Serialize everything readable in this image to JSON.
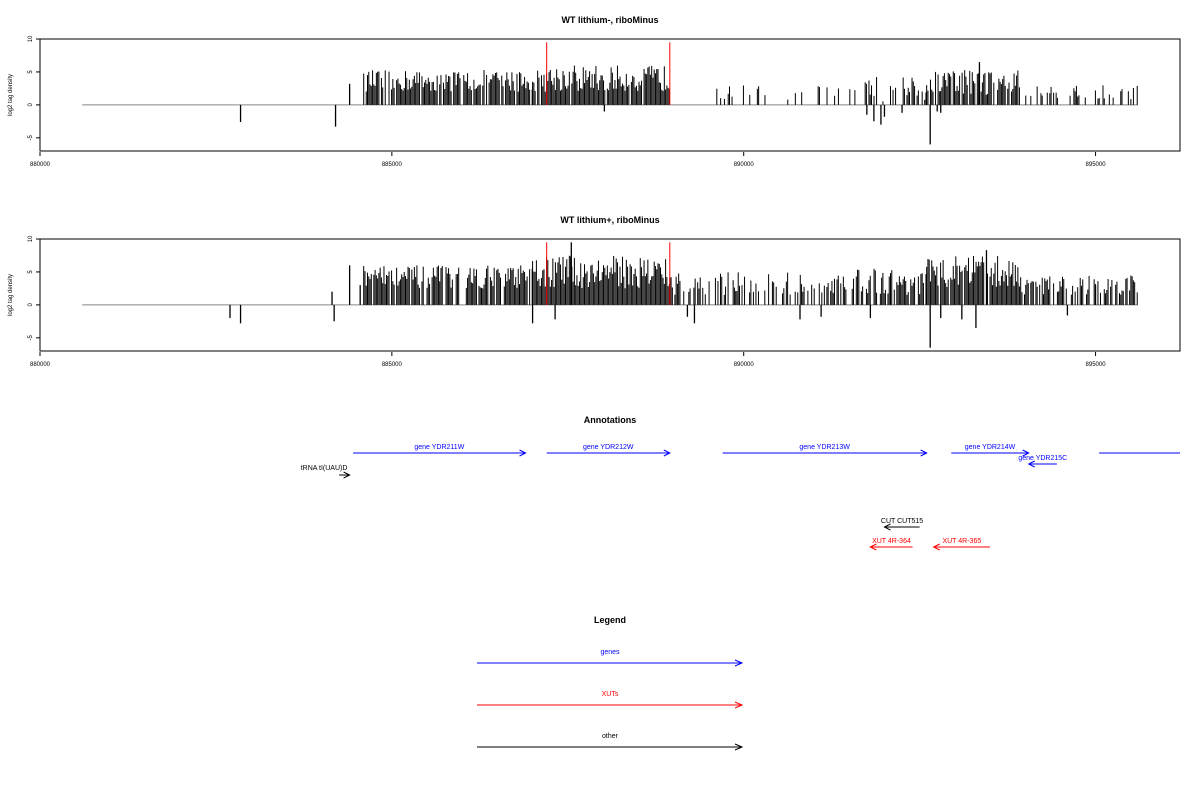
{
  "chart_data": [
    {
      "type": "bar",
      "title": "WT lithium-, riboMinus",
      "ylabel": "log2 tag density",
      "xlim": [
        880000,
        896200
      ],
      "ylim": [
        -7,
        10
      ],
      "xticks": [
        880000,
        885000,
        890000,
        895000
      ],
      "xtick_labels": [
        "880000",
        "885000",
        "890000",
        "895000"
      ],
      "yticks": [
        -5,
        0,
        5,
        10
      ],
      "ytick_labels": [
        "-5",
        "0",
        "5",
        "10"
      ],
      "baseline_range": [
        880600,
        895600
      ],
      "marker_lines": [
        887200,
        888950
      ],
      "marker_color": "#ff0000",
      "bar_color": "#000000",
      "segments": [
        {
          "start": 884600,
          "end": 887000,
          "min": 2.0,
          "max": 5.3,
          "density": 0.8
        },
        {
          "start": 887000,
          "end": 888950,
          "min": 2.0,
          "max": 6.0,
          "density": 0.95
        },
        {
          "start": 889600,
          "end": 891600,
          "min": 0.8,
          "max": 3.0,
          "density": 0.2
        },
        {
          "start": 891600,
          "end": 892600,
          "min": 0.5,
          "max": 4.5,
          "density": 0.4
        },
        {
          "start": 892600,
          "end": 893900,
          "min": 1.5,
          "max": 5.6,
          "density": 0.8
        },
        {
          "start": 893900,
          "end": 895600,
          "min": 0.8,
          "max": 3.0,
          "density": 0.35
        }
      ],
      "points": [
        {
          "x": 882850,
          "y": -2.6
        },
        {
          "x": 884200,
          "y": -3.3
        },
        {
          "x": 884400,
          "y": 3.2
        },
        {
          "x": 888020,
          "y": -1.0
        },
        {
          "x": 891750,
          "y": -1.5
        },
        {
          "x": 891850,
          "y": -2.5
        },
        {
          "x": 891950,
          "y": -3.0
        },
        {
          "x": 892000,
          "y": -1.8
        },
        {
          "x": 892250,
          "y": -1.2
        },
        {
          "x": 892650,
          "y": -6.0
        },
        {
          "x": 892750,
          "y": -1.0
        },
        {
          "x": 892800,
          "y": -1.2
        },
        {
          "x": 893350,
          "y": 6.5
        }
      ]
    },
    {
      "type": "bar",
      "title": "WT lithium+, riboMinus",
      "ylabel": "log2 tag density",
      "xlim": [
        880000,
        896200
      ],
      "ylim": [
        -7,
        10
      ],
      "xticks": [
        880000,
        885000,
        890000,
        895000
      ],
      "xtick_labels": [
        "880000",
        "885000",
        "890000",
        "895000"
      ],
      "yticks": [
        -5,
        0,
        5,
        10
      ],
      "ytick_labels": [
        "-5",
        "0",
        "5",
        "10"
      ],
      "baseline_range": [
        880600,
        895600
      ],
      "marker_lines": [
        887200,
        888950
      ],
      "marker_color": "#ff0000",
      "bar_color": "#000000",
      "segments": [
        {
          "start": 884600,
          "end": 887000,
          "min": 2.5,
          "max": 6.0,
          "density": 0.85
        },
        {
          "start": 887000,
          "end": 888950,
          "min": 2.5,
          "max": 7.5,
          "density": 1.0
        },
        {
          "start": 888950,
          "end": 891600,
          "min": 1.5,
          "max": 5.0,
          "density": 0.55
        },
        {
          "start": 891600,
          "end": 892600,
          "min": 1.5,
          "max": 5.5,
          "density": 0.6
        },
        {
          "start": 892600,
          "end": 893900,
          "min": 2.5,
          "max": 7.5,
          "density": 0.95
        },
        {
          "start": 893900,
          "end": 895600,
          "min": 1.5,
          "max": 4.5,
          "density": 0.6
        }
      ],
      "points": [
        {
          "x": 882700,
          "y": -2.0
        },
        {
          "x": 882850,
          "y": -2.8
        },
        {
          "x": 884150,
          "y": 2.0
        },
        {
          "x": 884180,
          "y": -2.5
        },
        {
          "x": 884400,
          "y": 6.0
        },
        {
          "x": 884550,
          "y": 3.0
        },
        {
          "x": 887000,
          "y": -2.8
        },
        {
          "x": 887320,
          "y": -2.2
        },
        {
          "x": 887550,
          "y": 9.5
        },
        {
          "x": 889200,
          "y": -1.8
        },
        {
          "x": 889300,
          "y": -2.8
        },
        {
          "x": 890800,
          "y": -2.2
        },
        {
          "x": 891100,
          "y": -1.8
        },
        {
          "x": 891800,
          "y": -2.0
        },
        {
          "x": 892650,
          "y": -6.5
        },
        {
          "x": 892800,
          "y": -2.0
        },
        {
          "x": 893100,
          "y": -2.2
        },
        {
          "x": 893300,
          "y": -3.5
        },
        {
          "x": 893450,
          "y": 8.3
        },
        {
          "x": 894600,
          "y": -1.6
        },
        {
          "x": 895000,
          "y": 3.0
        }
      ]
    },
    {
      "type": "annotation-track",
      "title": "Annotations",
      "xlim": [
        880000,
        896200
      ],
      "features": [
        {
          "label": "gene YDR211W",
          "start": 884450,
          "end": 886900,
          "row": 0,
          "direction": "forward",
          "color": "#0000ff"
        },
        {
          "label": "gene YDR212W",
          "start": 887200,
          "end": 888950,
          "row": 0,
          "direction": "forward",
          "color": "#0000ff"
        },
        {
          "label": "gene YDR213W",
          "start": 889700,
          "end": 892600,
          "row": 0,
          "direction": "forward",
          "color": "#0000ff"
        },
        {
          "label": "gene YDR214W",
          "start": 892950,
          "end": 894050,
          "row": 0,
          "direction": "forward",
          "color": "#0000ff"
        },
        {
          "label": "gene YDR215C",
          "start": 894050,
          "end": 894450,
          "row": 1,
          "direction": "reverse",
          "color": "#0000ff"
        },
        {
          "label": "",
          "start": 895050,
          "end": 896200,
          "row": 0,
          "direction": "none",
          "color": "#0000ff"
        },
        {
          "label": "tRNA tI(UAU)D",
          "start": 884250,
          "end": 884400,
          "row": 2,
          "direction": "forward",
          "color": "#000000"
        },
        {
          "label": "CUT CUT515",
          "start": 892000,
          "end": 892500,
          "row": 4,
          "direction": "reverse",
          "color": "#000000"
        },
        {
          "label": "XUT 4R-364",
          "start": 891800,
          "end": 892400,
          "row": 5,
          "direction": "reverse",
          "color": "#ff0000"
        },
        {
          "label": "XUT 4R-365",
          "start": 892700,
          "end": 893500,
          "row": 5,
          "direction": "reverse",
          "color": "#ff0000"
        }
      ]
    },
    {
      "type": "legend",
      "title": "Legend",
      "entries": [
        {
          "label": "genes",
          "color": "#0000ff"
        },
        {
          "label": "XUTs",
          "color": "#ff0000"
        },
        {
          "label": "other",
          "color": "#000000"
        }
      ]
    }
  ]
}
